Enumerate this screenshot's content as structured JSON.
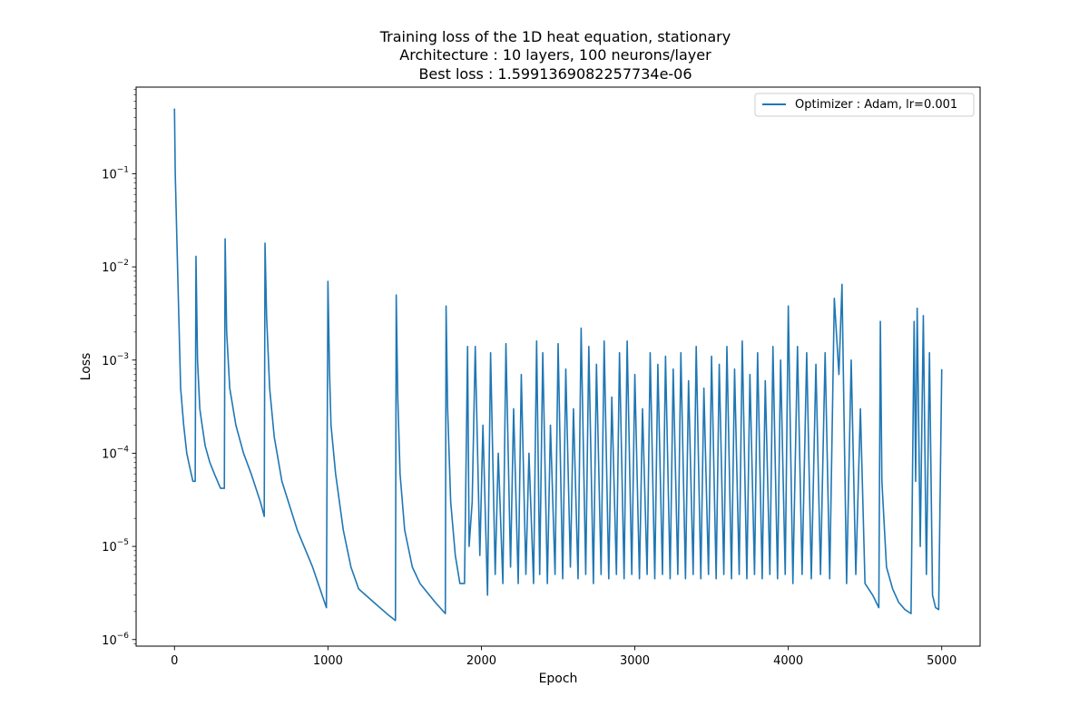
{
  "chart_data": {
    "type": "line",
    "title_lines": [
      "Training loss of the 1D heat equation, stationary",
      "Architecture : 10 layers, 100 neurons/layer",
      "Best loss : 1.5991369082257734e-06"
    ],
    "xlabel": "Epoch",
    "ylabel": "Loss",
    "yscale": "log",
    "xlim": [
      -250,
      5250
    ],
    "ylim": [
      8.5e-07,
      0.85
    ],
    "xticks": [
      0,
      1000,
      2000,
      3000,
      4000,
      5000
    ],
    "xtick_labels": [
      "0",
      "1000",
      "2000",
      "3000",
      "4000",
      "5000"
    ],
    "yticks": [
      1e-06,
      1e-05,
      0.0001,
      0.001,
      0.01,
      0.1
    ],
    "ytick_labels": [
      {
        "base": "10",
        "exp": "−6"
      },
      {
        "base": "10",
        "exp": "−5"
      },
      {
        "base": "10",
        "exp": "−4"
      },
      {
        "base": "10",
        "exp": "−3"
      },
      {
        "base": "10",
        "exp": "−2"
      },
      {
        "base": "10",
        "exp": "−1"
      }
    ],
    "legend": {
      "position": "top-right",
      "entries": [
        "Optimizer : Adam, lr=0.001"
      ]
    },
    "grid": false,
    "color": "#1f77b4",
    "series": [
      {
        "name": "Optimizer : Adam, lr=0.001",
        "x": [
          0,
          5,
          20,
          40,
          60,
          80,
          100,
          120,
          135,
          140,
          150,
          165,
          180,
          200,
          230,
          260,
          300,
          325,
          330,
          340,
          360,
          400,
          450,
          500,
          560,
          585,
          590,
          600,
          620,
          650,
          700,
          800,
          900,
          990,
          1000,
          1010,
          1020,
          1050,
          1100,
          1150,
          1200,
          1300,
          1400,
          1440,
          1445,
          1455,
          1470,
          1500,
          1550,
          1600,
          1700,
          1765,
          1770,
          1780,
          1800,
          1830,
          1860,
          1890,
          1910,
          1920,
          1940,
          1960,
          1990,
          2010,
          2040,
          2060,
          2090,
          2110,
          2140,
          2160,
          2190,
          2210,
          2240,
          2260,
          2290,
          2310,
          2340,
          2360,
          2380,
          2400,
          2430,
          2450,
          2480,
          2500,
          2530,
          2550,
          2580,
          2600,
          2630,
          2650,
          2680,
          2700,
          2730,
          2750,
          2780,
          2800,
          2830,
          2850,
          2880,
          2900,
          2930,
          2950,
          2980,
          3000,
          3030,
          3050,
          3080,
          3100,
          3130,
          3150,
          3180,
          3200,
          3230,
          3250,
          3280,
          3300,
          3330,
          3350,
          3380,
          3400,
          3430,
          3450,
          3480,
          3500,
          3530,
          3550,
          3580,
          3600,
          3630,
          3650,
          3680,
          3700,
          3730,
          3750,
          3780,
          3800,
          3830,
          3850,
          3880,
          3900,
          3930,
          3950,
          3980,
          4000,
          4030,
          4060,
          4090,
          4120,
          4150,
          4180,
          4210,
          4240,
          4270,
          4300,
          4330,
          4350,
          4380,
          4410,
          4440,
          4470,
          4500,
          4550,
          4590,
          4600,
          4610,
          4640,
          4680,
          4720,
          4760,
          4800,
          4820,
          4830,
          4840,
          4860,
          4880,
          4900,
          4920,
          4940,
          4960,
          4980,
          5000
        ],
        "y": [
          0.5,
          0.1,
          0.01,
          0.0005,
          0.0002,
          0.0001,
          7e-05,
          5e-05,
          5e-05,
          0.013,
          0.001,
          0.0003,
          0.0002,
          0.00012,
          8e-05,
          6e-05,
          4.2e-05,
          4.2e-05,
          0.02,
          0.002,
          0.0005,
          0.0002,
          0.0001,
          6e-05,
          3e-05,
          2.1e-05,
          0.018,
          0.003,
          0.0005,
          0.00015,
          5e-05,
          1.5e-05,
          6e-06,
          2.2e-06,
          0.007,
          0.0008,
          0.0002,
          6e-05,
          1.5e-05,
          6e-06,
          3.5e-06,
          2.5e-06,
          1.8e-06,
          1.6e-06,
          0.005,
          0.0004,
          6e-05,
          1.5e-05,
          6e-06,
          4e-06,
          2.5e-06,
          1.9e-06,
          0.0038,
          0.0003,
          3e-05,
          8e-06,
          4e-06,
          4e-06,
          0.0014,
          1e-05,
          3e-05,
          0.0014,
          8e-06,
          0.0002,
          3e-06,
          0.0012,
          5e-06,
          0.0001,
          4e-06,
          0.0015,
          6e-06,
          0.0003,
          4e-06,
          0.0007,
          5e-06,
          0.0001,
          4e-06,
          0.0016,
          5e-06,
          0.0012,
          4e-06,
          0.0002,
          5e-06,
          0.0015,
          4.5e-06,
          0.0008,
          6e-06,
          0.0003,
          4.5e-06,
          0.0022,
          5e-06,
          0.0014,
          4e-06,
          0.0009,
          5e-06,
          0.0016,
          4.5e-06,
          0.0004,
          5e-06,
          0.0012,
          4.5e-06,
          0.0016,
          5e-06,
          0.0007,
          4.5e-06,
          0.0003,
          5e-06,
          0.0012,
          4.5e-06,
          0.0009,
          5e-06,
          0.0011,
          4.5e-06,
          0.0008,
          5e-06,
          0.0012,
          4.5e-06,
          0.0006,
          5e-06,
          0.0014,
          4.5e-06,
          0.0005,
          5e-06,
          0.0011,
          4.5e-06,
          0.0009,
          5e-06,
          0.0014,
          4.5e-06,
          0.0008,
          5e-06,
          0.0016,
          4.5e-06,
          0.0007,
          5e-06,
          0.0012,
          4.5e-06,
          0.0006,
          5e-06,
          0.0014,
          4.5e-06,
          0.001,
          5e-06,
          0.0038,
          4e-06,
          0.0014,
          5e-06,
          0.0012,
          4.5e-06,
          0.0009,
          5e-06,
          0.0012,
          4.5e-06,
          0.0046,
          0.0007,
          0.0065,
          4e-06,
          0.001,
          5e-06,
          0.0003,
          4e-06,
          3e-06,
          2.2e-06,
          0.0026,
          5e-05,
          6e-06,
          3.5e-06,
          2.5e-06,
          2.1e-06,
          1.9e-06,
          0.0026,
          5e-05,
          0.0036,
          1e-05,
          0.003,
          5e-06,
          0.0012,
          3e-06,
          2.2e-06,
          2.1e-06,
          0.0008
        ]
      }
    ]
  }
}
